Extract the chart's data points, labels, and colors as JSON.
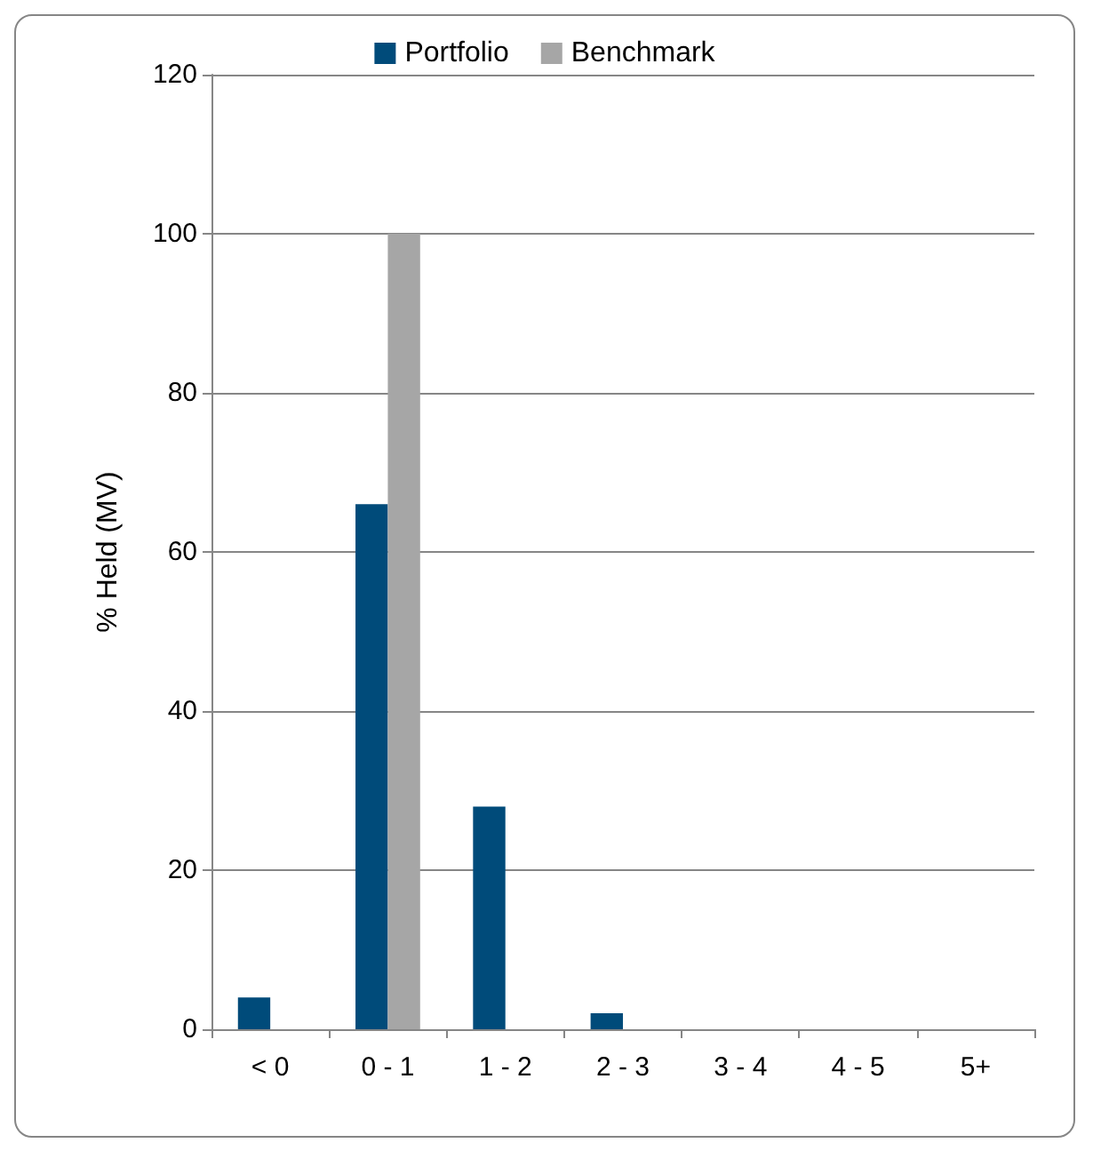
{
  "chart_data": {
    "type": "bar",
    "ylabel": "% Held (MV)",
    "categories": [
      "< 0",
      "0 - 1",
      "1 - 2",
      "2 - 3",
      "3 - 4",
      "4 - 5",
      "5+"
    ],
    "series": [
      {
        "name": "Portfolio",
        "color": "#004b7a",
        "values": [
          4,
          66,
          28,
          2,
          0,
          0,
          0
        ]
      },
      {
        "name": "Benchmark",
        "color": "#a6a6a6",
        "values": [
          0,
          100,
          0,
          0,
          0,
          0,
          0
        ]
      }
    ],
    "ylim": [
      0,
      120
    ],
    "yticks": [
      0,
      20,
      40,
      60,
      80,
      100,
      120
    ],
    "grid": "y",
    "legend": "top"
  }
}
